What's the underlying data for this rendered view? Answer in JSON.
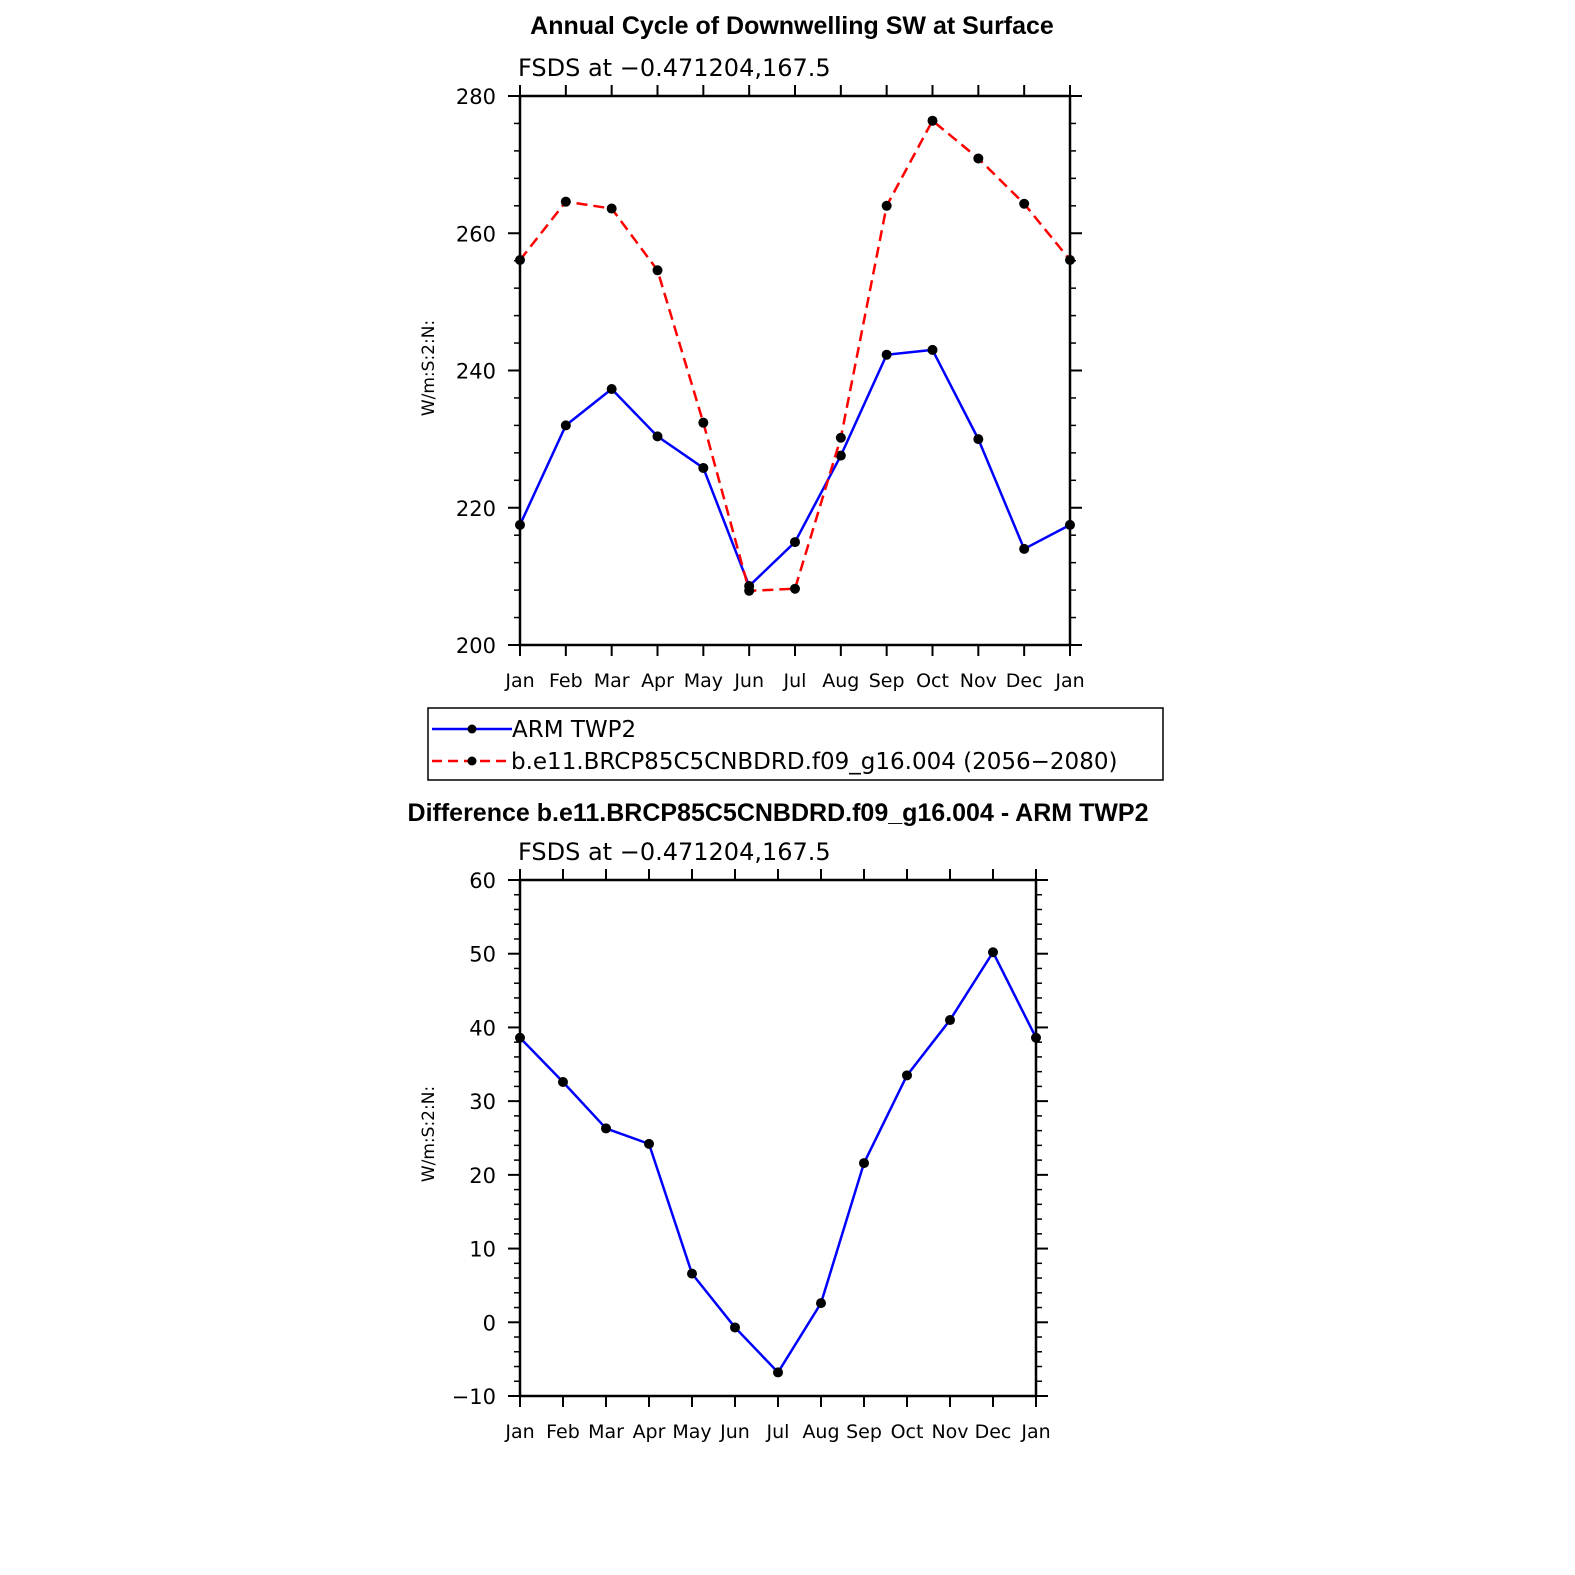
{
  "colors": {
    "obs": "#0000ff",
    "model": "#ff0000",
    "marker": "#000000"
  },
  "legend": {
    "entries": [
      "ARM TWP2",
      "b.e11.BRCP85C5CNBDRD.f09_g16.004 (2056−2080)"
    ]
  },
  "chart_data": [
    {
      "type": "line",
      "title": "Annual Cycle of Downwelling SW at Surface",
      "subtitle": "FSDS at −0.471204,167.5",
      "ylabel": "W/m:S:2:N:",
      "ylim": [
        200,
        280
      ],
      "yticks": [
        "200",
        "220",
        "240",
        "260",
        "280"
      ],
      "ytick_values": [
        200,
        220,
        240,
        260,
        280
      ],
      "categories": [
        "Jan",
        "Feb",
        "Mar",
        "Apr",
        "May",
        "Jun",
        "Jul",
        "Aug",
        "Sep",
        "Oct",
        "Nov",
        "Dec",
        "Jan"
      ],
      "series": [
        {
          "name": "ARM TWP2",
          "style": "solid",
          "color": "#0000ff",
          "values": [
            217.5,
            232.0,
            237.3,
            230.4,
            225.8,
            208.6,
            215.0,
            227.6,
            242.3,
            243.0,
            230.0,
            214.0,
            217.5
          ]
        },
        {
          "name": "b.e11.BRCP85C5CNBDRD.f09_g16.004 (2056−2080)",
          "style": "dashed",
          "color": "#ff0000",
          "values": [
            256.1,
            264.6,
            263.6,
            254.6,
            232.4,
            207.9,
            208.2,
            230.2,
            264.0,
            276.4,
            270.9,
            264.3,
            256.1
          ]
        }
      ]
    },
    {
      "type": "line",
      "title": "Difference b.e11.BRCP85C5CNBDRD.f09_g16.004 - ARM TWP2",
      "subtitle": "FSDS at −0.471204,167.5",
      "ylabel": "W/m:S:2:N:",
      "ylim": [
        -10,
        60
      ],
      "yticks": [
        "−10",
        "0",
        "10",
        "20",
        "30",
        "40",
        "50",
        "60"
      ],
      "ytick_values": [
        -10,
        0,
        10,
        20,
        30,
        40,
        50,
        60
      ],
      "categories": [
        "Jan",
        "Feb",
        "Mar",
        "Apr",
        "May",
        "Jun",
        "Jul",
        "Aug",
        "Sep",
        "Oct",
        "Nov",
        "Dec",
        "Jan"
      ],
      "series": [
        {
          "style": "solid",
          "color": "#0000ff",
          "values": [
            38.6,
            32.6,
            26.3,
            24.2,
            6.6,
            -0.7,
            -6.8,
            2.6,
            21.6,
            33.5,
            41.0,
            50.2,
            38.6
          ]
        }
      ]
    }
  ]
}
